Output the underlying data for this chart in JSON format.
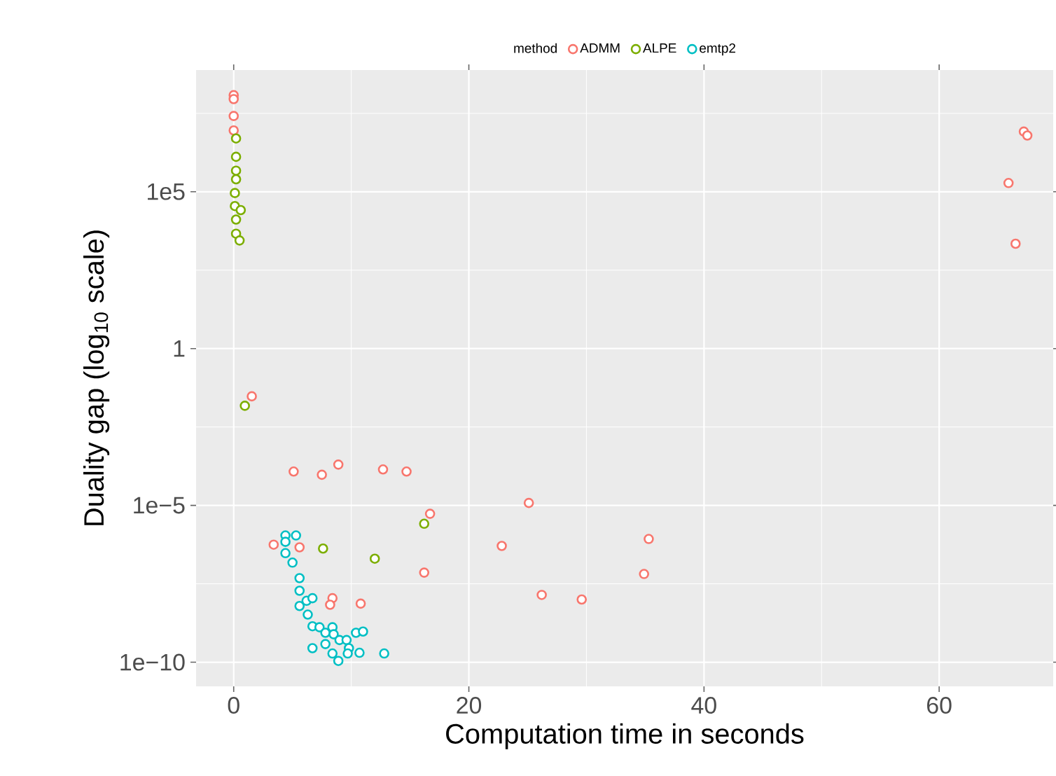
{
  "chart_data": {
    "type": "scatter",
    "xlabel": "Computation time in seconds",
    "ylabel": "Duality gap (log$_{10}$ scale)",
    "legend_title": "method",
    "xlim": [
      -3.2,
      69.7
    ],
    "ylim": [
      1.7e-11,
      760000000.0
    ],
    "log": "y",
    "xticks": [
      0,
      20,
      40,
      60
    ],
    "yticks": [
      {
        "value": 1e-10,
        "label": "1e−10"
      },
      {
        "value": 1e-05,
        "label": "1e−5"
      },
      1,
      {
        "value": 100000.0,
        "label": "1e5"
      }
    ],
    "grid": true,
    "legend": "top",
    "marker": "circle",
    "series": [
      {
        "name": "ADMM",
        "color": "#f8766d",
        "x": [
          0,
          0,
          0,
          0,
          1.54,
          5.1,
          7.5,
          8.9,
          12.7,
          14.7,
          16.7,
          3.4,
          5.6,
          16.2,
          8.4,
          8.2,
          10.8,
          25.1,
          22.8,
          35.3,
          34.9,
          26.2,
          29.6,
          67.2,
          67.5,
          65.9,
          66.5
        ],
        "values": [
          120000000.0,
          90000000.0,
          26000000.0,
          9000000.0,
          0.03,
          0.00012,
          9.5e-05,
          0.0002,
          0.00014,
          0.00012,
          5.4e-06,
          5.6e-07,
          4.6e-07,
          7.2e-08,
          1.1e-08,
          6.8e-09,
          7.4e-09,
          1.2e-05,
          5.1e-07,
          8.5e-07,
          6.5e-08,
          1.4e-08,
          1e-08,
          8300000.0,
          6200000.0,
          190000.0,
          2200.0
        ]
      },
      {
        "name": "ALPE",
        "color": "#7cae00",
        "x": [
          0.2,
          0.2,
          0.2,
          0.2,
          0.1,
          0.1,
          0.6,
          0.2,
          0.2,
          0.5,
          0.95,
          7.6,
          12.0,
          16.2
        ],
        "values": [
          5000000.0,
          1300000.0,
          470000.0,
          250000.0,
          91000.0,
          35000.0,
          26000.0,
          13000.0,
          4600.0,
          2800.0,
          0.015,
          4.2e-07,
          2e-07,
          2.6e-06
        ]
      },
      {
        "name": "emtp2",
        "color": "#00bfc4",
        "x": [
          4.4,
          5.3,
          4.4,
          4.4,
          5.0,
          5.6,
          5.6,
          5.6,
          6.2,
          6.7,
          6.3,
          6.7,
          7.3,
          8.4,
          7.8,
          8.5,
          9.0,
          9.6,
          10.4,
          11.0,
          6.7,
          7.8,
          8.4,
          8.9,
          9.8,
          9.7,
          10.7,
          12.8
        ],
        "values": [
          1.1e-06,
          1.1e-06,
          6.9e-07,
          3e-07,
          1.5e-07,
          4.8e-08,
          1.9e-08,
          6.2e-09,
          9.1e-09,
          1.1e-08,
          3.3e-09,
          1.4e-09,
          1.3e-09,
          1.3e-09,
          8.7e-10,
          7.8e-10,
          5.1e-10,
          5.1e-10,
          8.7e-10,
          9.5e-10,
          2.8e-10,
          3.8e-10,
          1.9e-10,
          1.1e-10,
          2.8e-10,
          1.9e-10,
          2e-10,
          1.9e-10
        ]
      }
    ]
  }
}
